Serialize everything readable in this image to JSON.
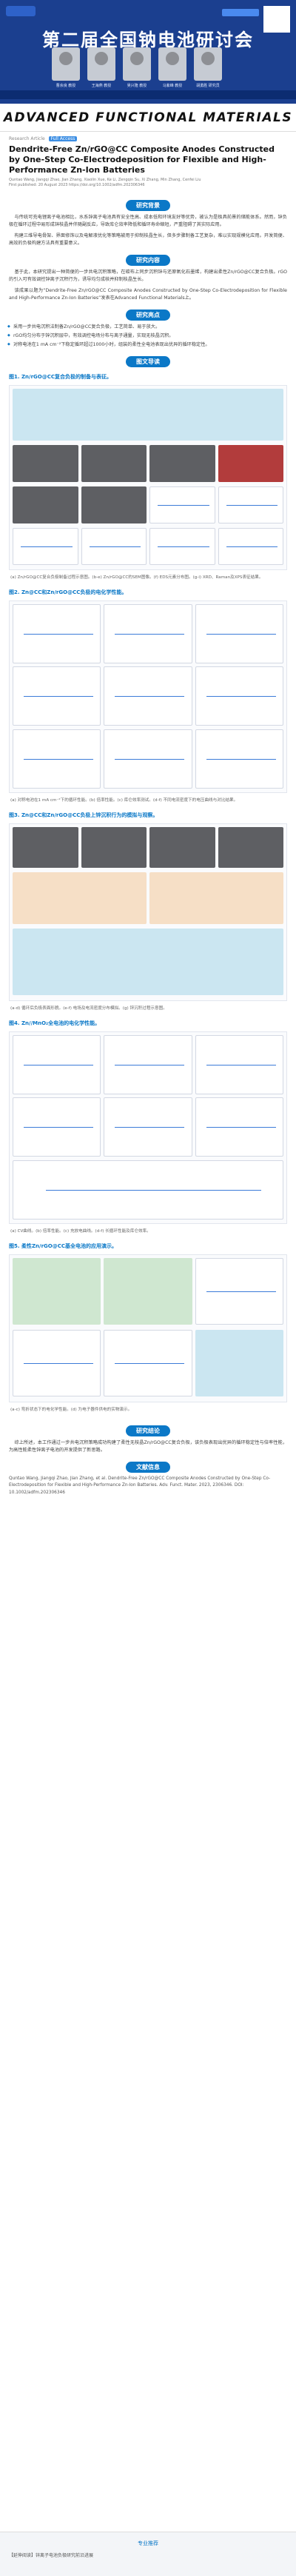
{
  "banner": {
    "title": "第二届全国钠电池研讨会",
    "speakers": [
      "曹余良 教授",
      "王海燕 教授",
      "吴兴隆 教授",
      "马紫峰 教授",
      "胡勇胜 研究员"
    ]
  },
  "journal": {
    "name": "ADVANCED FUNCTIONAL MATERIALS"
  },
  "article": {
    "tag": "Research Article",
    "tag_badge": "Full Access",
    "title": "Dendrite-Free Zn/rGO@CC Composite Anodes Constructed by One-Step Co-Electrodeposition for Flexible and High-Performance Zn-Ion Batteries",
    "authors": "Quntao Wang, Jiangqi Zhao, Jian Zhang, Xiaolin Xue, Ke Li, Zengqin Su, Xi Zhang, Min Zhang, Cenfei Liu",
    "published": "First published: 20 August 2023  https://doi.org/10.1002/adfm.202306346"
  },
  "sections": {
    "background": {
      "heading": "研究背景",
      "paras": [
        "与传统可充电锂离子电池相比，水系锌离子电池具有安全性高、成本低和环境友好等优势，被认为是极具前景的储能体系。然而，锌负极在循环过程中易形成锌枝晶并伴随副反应，导致库仑效率降低和循环寿命缩短，严重阻碍了其实际应用。",
        "构建三维导电骨架、界面修饰以及电解液优化等策略被用于抑制枝晶生长，但多步骤制备工艺复杂，难以实现规模化应用。开发简便、高效的负极构建方法具有重要意义。"
      ]
    },
    "summary": {
      "heading": "研究内容",
      "paras": [
        "基于此，本研究提出一种简便的一步共电沉积策略，在碳布上同步沉积锌与还原氧化石墨烯，构建出柔性Zn/rGO@CC复合负极。rGO的引入可有效调控锌离子沉积行为，诱导均匀成核并抑制枝晶生长。",
        "该成果以题为“Dendrite-Free Zn/rGO@CC Composite Anodes Constructed by One-Step Co-Electrodeposition for Flexible and High-Performance Zn-Ion Batteries”发表在Advanced Functional Materials上。"
      ]
    },
    "highlights": {
      "heading": "研究亮点",
      "items": [
        "采用一步共电沉积法制备Zn/rGO@CC复合负极，工艺简单、易于放大。",
        "rGO均匀分布于锌沉积层中，有效调控电场分布与离子通量，实现无枝晶沉积。",
        "对称电池在1 mA cm⁻²下稳定循环超过1000小时，组装的柔性全电池表现出优异的循环稳定性。"
      ]
    },
    "guide": {
      "heading": "图文导读"
    }
  },
  "figures": [
    {
      "title": "图1. Zn/rGO@CC复合负极的制备与表征。",
      "caption": "(a) Zn/rGO@CC复合负极制备过程示意图。(b-e) Zn/rGO@CC的SEM图像。(f) EDS元素分布图。(g-i) XRD、Raman及XPS表征结果。"
    },
    {
      "title": "图2. Zn@CC和Zn/rGO@CC负极的电化学性能。",
      "caption": "(a) 对称电池在1 mA cm⁻²下的循环性能。(b) 倍率性能。(c) 库仑效率测试。(d-f) 不同电流密度下的电压曲线与对比结果。"
    },
    {
      "title": "图3. Zn@CC和Zn/rGO@CC负极上锌沉积行为的模拟与观察。",
      "caption": "(a-d) 循环后负极表面形貌。(e-f) 电场及电流密度分布模拟。(g) 锌沉积过程示意图。"
    },
    {
      "title": "图4. Zn//MnO₂全电池的电化学性能。",
      "caption": "(a) CV曲线。(b) 倍率性能。(c) 充放电曲线。(d-f) 长循环性能及库仑效率。"
    },
    {
      "title": "图5. 柔性Zn/rGO@CC基全电池的应用演示。",
      "caption": "(a-c) 弯折状态下的电化学性能。(d) 为电子器件供电的实物演示。"
    }
  ],
  "conclusion": {
    "heading": "研究结论",
    "text": "综上所述，本工作通过一步共电沉积策略成功构建了柔性无枝晶Zn/rGO@CC复合负极，该负极表现出优异的循环稳定性与倍率性能，为高性能柔性锌离子电池的开发提供了新思路。"
  },
  "reference": {
    "heading": "文献信息",
    "text": "Quntao Wang, Jiangqi Zhao, Jian Zhang, et al. Dendrite-Free Zn/rGO@CC Composite Anodes Constructed by One-Step Co-Electrodeposition for Flexible and High-Performance Zn-Ion Batteries. Adv. Funct. Mater. 2023, 2306346. DOI: 10.1002/adfm.202306346"
  },
  "footer": {
    "divider": "专业推荐",
    "rec": "【延伸阅读】锌离子电池负极研究前沿进展"
  }
}
